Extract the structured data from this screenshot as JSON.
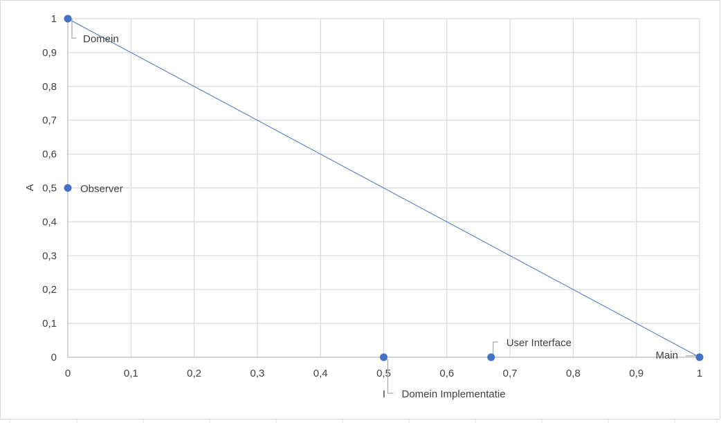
{
  "chart_data": {
    "type": "scatter",
    "title": "",
    "xlabel": "I",
    "ylabel": "A",
    "xlim": [
      0,
      1
    ],
    "ylim": [
      0,
      1
    ],
    "x_ticks": [
      "0",
      "0,1",
      "0,2",
      "0,3",
      "0,4",
      "0,5",
      "0,6",
      "0,7",
      "0,8",
      "0,9",
      "1"
    ],
    "y_ticks": [
      "0",
      "0,1",
      "0,2",
      "0,3",
      "0,4",
      "0,5",
      "0,6",
      "0,7",
      "0,8",
      "0,9",
      "1"
    ],
    "grid": true,
    "legend": false,
    "points": [
      {
        "label": "Domein",
        "x": 0,
        "y": 1
      },
      {
        "label": "Observer",
        "x": 0,
        "y": 0.5
      },
      {
        "label": "Domein Implementatie",
        "x": 0.5,
        "y": 0
      },
      {
        "label": "User Interface",
        "x": 0.67,
        "y": 0
      },
      {
        "label": "Main",
        "x": 1,
        "y": 0
      }
    ],
    "reference_line": {
      "x": [
        0,
        1
      ],
      "y": [
        1,
        0
      ]
    },
    "colors": {
      "marker": "#4472C4",
      "line": "#4472C4",
      "grid": "#D9D9D9",
      "text": "#404040",
      "leader": "#A6A6A6"
    }
  }
}
